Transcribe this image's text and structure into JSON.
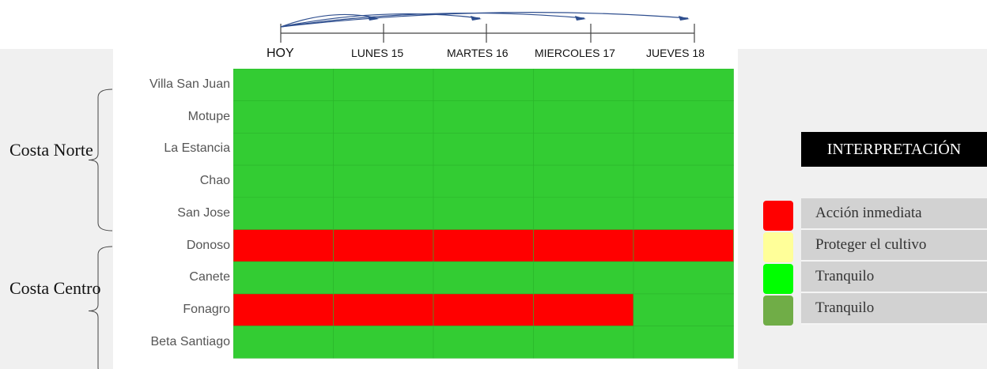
{
  "chart_data": {
    "type": "heatmap",
    "columns": [
      "HOY",
      "LUNES  15",
      "MARTES  16",
      "MIERCOLES  17",
      "JUEVES  18"
    ],
    "rows": [
      "Villa San Juan",
      "Motupe",
      "La Estancia",
      "Chao",
      "San Jose",
      "Donoso",
      "Canete",
      "Fonagro",
      "Beta Santiago"
    ],
    "values": [
      [
        "Tranquilo",
        "Tranquilo",
        "Tranquilo",
        "Tranquilo",
        "Tranquilo"
      ],
      [
        "Tranquilo",
        "Tranquilo",
        "Tranquilo",
        "Tranquilo",
        "Tranquilo"
      ],
      [
        "Tranquilo",
        "Tranquilo",
        "Tranquilo",
        "Tranquilo",
        "Tranquilo"
      ],
      [
        "Tranquilo",
        "Tranquilo",
        "Tranquilo",
        "Tranquilo",
        "Tranquilo"
      ],
      [
        "Tranquilo",
        "Tranquilo",
        "Tranquilo",
        "Tranquilo",
        "Tranquilo"
      ],
      [
        "Acción inmediata",
        "Acción inmediata",
        "Acción inmediata",
        "Acción inmediata",
        "Acción inmediata"
      ],
      [
        "Tranquilo",
        "Tranquilo",
        "Tranquilo",
        "Tranquilo",
        "Tranquilo"
      ],
      [
        "Acción inmediata",
        "Acción inmediata",
        "Acción inmediata",
        "Acción inmediata",
        "Tranquilo"
      ],
      [
        "Tranquilo",
        "Tranquilo",
        "Tranquilo",
        "Tranquilo",
        "Tranquilo"
      ]
    ],
    "groups": [
      {
        "name": "Costa Norte",
        "rows": [
          "Villa San Juan",
          "Motupe",
          "La Estancia",
          "Chao",
          "San Jose"
        ]
      },
      {
        "name": "Costa Centro",
        "rows": [
          "Donoso",
          "Canete",
          "Fonagro",
          "Beta Santiago"
        ]
      }
    ],
    "legend": {
      "title": "INTERPRETACIÓN",
      "items": [
        {
          "label": "Acción inmediata",
          "color": "#ff0000"
        },
        {
          "label": "Proteger el cultivo",
          "color": "#ffff99"
        },
        {
          "label": "Tranquilo",
          "color": "#00ff00"
        },
        {
          "label": "Tranquilo",
          "color": "#70ad47"
        }
      ]
    },
    "cell_colors": {
      "Acción inmediata": "#ff0000",
      "Tranquilo": "#33cc33"
    },
    "grid": true
  }
}
